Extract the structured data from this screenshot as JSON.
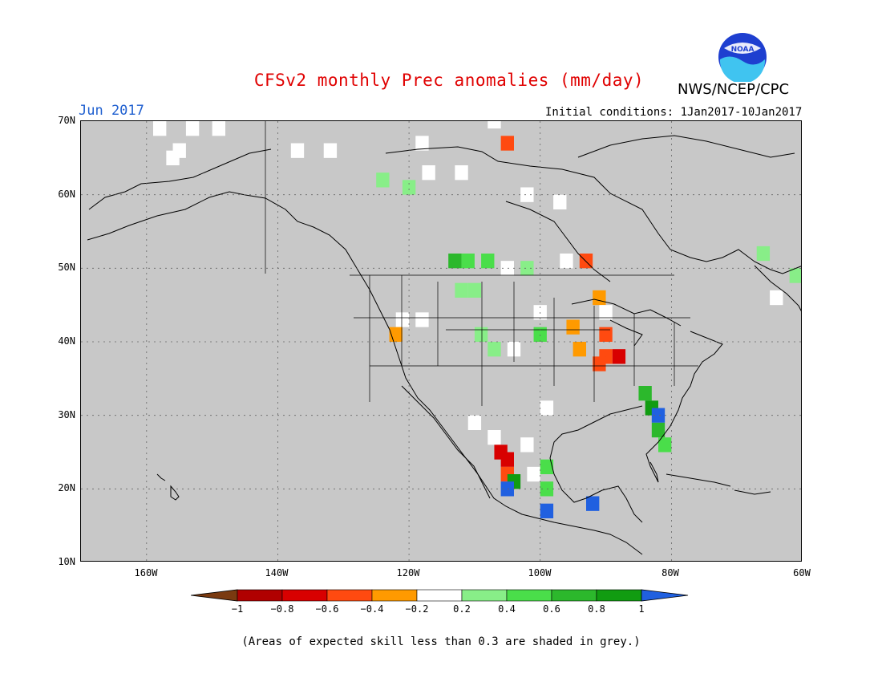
{
  "header": {
    "title": "CFSv2 monthly Prec anomalies (mm/day)",
    "title_color": "#e00000",
    "agency": "NWS/NCEP/CPC",
    "logo_text": "NOAA",
    "month": "Jun 2017",
    "month_color": "#2060d0",
    "initial_conditions": "Initial conditions: 1Jan2017-10Jan2017"
  },
  "map": {
    "background_color": "#c8c8c8",
    "lat_labels": [
      "70N",
      "60N",
      "50N",
      "40N",
      "30N",
      "20N",
      "10N"
    ],
    "lon_labels": [
      "160W",
      "140W",
      "120W",
      "100W",
      "80W",
      "60W"
    ],
    "anomaly_cells": [
      {
        "lat": 69,
        "lon": -158,
        "value": 0.0
      },
      {
        "lat": 69,
        "lon": -153,
        "value": 0.0
      },
      {
        "lat": 69,
        "lon": -149,
        "value": 0.0
      },
      {
        "lat": 66,
        "lon": -155,
        "value": 0.0
      },
      {
        "lat": 65,
        "lon": -156,
        "value": 0.0
      },
      {
        "lat": 66,
        "lon": -137,
        "value": 0.0
      },
      {
        "lat": 66,
        "lon": -132,
        "value": 0.0
      },
      {
        "lat": 67,
        "lon": -118,
        "value": 0.0
      },
      {
        "lat": 70,
        "lon": -107,
        "value": 0.0
      },
      {
        "lat": 67,
        "lon": -105,
        "value": -0.4
      },
      {
        "lat": 63,
        "lon": -117,
        "value": 0.0
      },
      {
        "lat": 63,
        "lon": -112,
        "value": 0.0
      },
      {
        "lat": 62,
        "lon": -124,
        "value": 0.3
      },
      {
        "lat": 61,
        "lon": -120,
        "value": 0.3
      },
      {
        "lat": 60,
        "lon": -102,
        "value": 0.0
      },
      {
        "lat": 59,
        "lon": -97,
        "value": 0.0
      },
      {
        "lat": 51,
        "lon": -113,
        "value": 0.7
      },
      {
        "lat": 51,
        "lon": -111,
        "value": 0.5
      },
      {
        "lat": 51,
        "lon": -108,
        "value": 0.5
      },
      {
        "lat": 50,
        "lon": -105,
        "value": 0.0
      },
      {
        "lat": 50,
        "lon": -102,
        "value": 0.3
      },
      {
        "lat": 51,
        "lon": -96,
        "value": 0.0
      },
      {
        "lat": 51,
        "lon": -93,
        "value": -0.4
      },
      {
        "lat": 47,
        "lon": -112,
        "value": 0.3
      },
      {
        "lat": 47,
        "lon": -110,
        "value": 0.3
      },
      {
        "lat": 43,
        "lon": -121,
        "value": 0.0
      },
      {
        "lat": 43,
        "lon": -118,
        "value": 0.0
      },
      {
        "lat": 41,
        "lon": -122,
        "value": -0.3
      },
      {
        "lat": 41,
        "lon": -109,
        "value": 0.3
      },
      {
        "lat": 39,
        "lon": -107,
        "value": 0.3
      },
      {
        "lat": 39,
        "lon": -104,
        "value": 0.0
      },
      {
        "lat": 41,
        "lon": -100,
        "value": 0.5
      },
      {
        "lat": 44,
        "lon": -100,
        "value": 0.0
      },
      {
        "lat": 42,
        "lon": -95,
        "value": -0.3
      },
      {
        "lat": 41,
        "lon": -90,
        "value": -0.5
      },
      {
        "lat": 39,
        "lon": -94,
        "value": -0.3
      },
      {
        "lat": 38,
        "lon": -88,
        "value": -0.7
      },
      {
        "lat": 38,
        "lon": -90,
        "value": -0.5
      },
      {
        "lat": 37,
        "lon": -91,
        "value": -0.4
      },
      {
        "lat": 46,
        "lon": -91,
        "value": -0.3
      },
      {
        "lat": 44,
        "lon": -90,
        "value": 0.0
      },
      {
        "lat": 33,
        "lon": -84,
        "value": 0.7
      },
      {
        "lat": 31,
        "lon": -83,
        "value": 0.8
      },
      {
        "lat": 30,
        "lon": -82,
        "value": 1.0
      },
      {
        "lat": 28,
        "lon": -82,
        "value": 0.6
      },
      {
        "lat": 26,
        "lon": -81,
        "value": 0.5
      },
      {
        "lat": 29,
        "lon": -110,
        "value": 0.0
      },
      {
        "lat": 27,
        "lon": -107,
        "value": 0.0
      },
      {
        "lat": 25,
        "lon": -106,
        "value": -0.6
      },
      {
        "lat": 24,
        "lon": -105,
        "value": -0.7
      },
      {
        "lat": 22,
        "lon": -105,
        "value": -0.4
      },
      {
        "lat": 21,
        "lon": -104,
        "value": 0.8
      },
      {
        "lat": 20,
        "lon": -105,
        "value": 1.0
      },
      {
        "lat": 22,
        "lon": -101,
        "value": 0.0
      },
      {
        "lat": 23,
        "lon": -99,
        "value": 0.5
      },
      {
        "lat": 20,
        "lon": -99,
        "value": 0.5
      },
      {
        "lat": 17,
        "lon": -99,
        "value": 1.0
      },
      {
        "lat": 18,
        "lon": -92,
        "value": 1.0
      },
      {
        "lat": 26,
        "lon": -102,
        "value": 0.0
      },
      {
        "lat": 31,
        "lon": -99,
        "value": 0.0
      },
      {
        "lat": 52,
        "lon": -66,
        "value": 0.3
      },
      {
        "lat": 49,
        "lon": -61,
        "value": 0.3
      },
      {
        "lat": 46,
        "lon": -64,
        "value": 0.0
      }
    ]
  },
  "colorbar": {
    "tick_labels": [
      "−1",
      "−0.8",
      "−0.6",
      "−0.4",
      "−0.2",
      "0.2",
      "0.4",
      "0.6",
      "0.8",
      "1"
    ],
    "colors": [
      "#7a3a10",
      "#b00000",
      "#d80000",
      "#ff4a10",
      "#ff9a00",
      "#ffffff",
      "#88ee88",
      "#4ade4a",
      "#2cb82c",
      "#119c11",
      "#2060e0"
    ]
  },
  "footnote": "(Areas of expected skill less than 0.3 are shaded in grey.)"
}
